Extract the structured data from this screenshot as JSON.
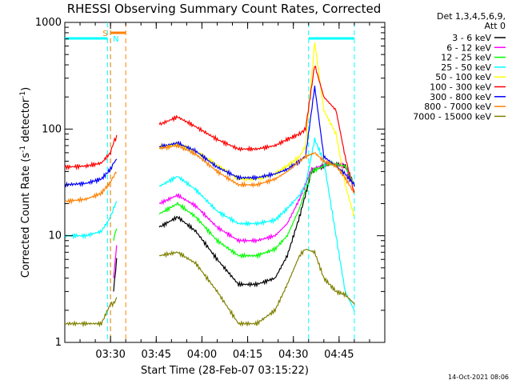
{
  "chart_data": {
    "type": "line",
    "title": "RHESSI Observing Summary Count Rates, Corrected",
    "xlabel": "Start Time (28-Feb-07 03:15:22)",
    "ylabel_main": "Corrected Count Rate (s",
    "ylabel_sup1": "-1",
    "ylabel_mid": " detector",
    "ylabel_sup2": "-1",
    "ylabel_end": ")",
    "ylabel": "Corrected Count Rate (s-1 detector-1)",
    "yscale": "log",
    "ylim": [
      1,
      1000
    ],
    "xlim": [
      "03:15",
      "05:00"
    ],
    "xticks": [
      "03:30",
      "03:45",
      "04:00",
      "04:15",
      "04:30",
      "04:45"
    ],
    "yticks": [
      "1",
      "10",
      "100",
      "1000"
    ],
    "legend_header": [
      "Det 1,3,4,5,6,9,",
      "Att 0"
    ],
    "legend_placement": "right",
    "flag_labels": {
      "saa": "S",
      "night": "N"
    },
    "timestamp": "14-Oct-2021 08:06",
    "series": [
      {
        "name": "3 - 6 keV",
        "color": "#000000",
        "x": [
          "03:15",
          "03:30",
          "03:31",
          "03:32",
          "03:43",
          "03:46",
          "03:52",
          "03:58",
          "04:05",
          "04:12",
          "04:18",
          "04:24",
          "04:28",
          "04:32",
          "04:36",
          "04:42",
          "04:47",
          "04:50"
        ],
        "y": [
          null,
          null,
          3.0,
          6.0,
          null,
          12,
          15,
          11,
          6,
          3.5,
          3.5,
          4.0,
          6.5,
          15,
          40,
          48,
          45,
          30
        ]
      },
      {
        "name": "6 - 12 keV",
        "color": "#ff00ff",
        "x": [
          "03:15",
          "03:30",
          "03:31",
          "03:32",
          "03:43",
          "03:46",
          "03:52",
          "03:58",
          "04:05",
          "04:12",
          "04:18",
          "04:24",
          "04:28",
          "04:32",
          "04:36",
          "04:42",
          "04:47",
          "04:50"
        ],
        "y": [
          null,
          null,
          4.0,
          8.0,
          null,
          20,
          24,
          19,
          12,
          9,
          9,
          10,
          13,
          22,
          42,
          48,
          45,
          30
        ]
      },
      {
        "name": "12 - 25 keV",
        "color": "#00ff00",
        "x": [
          "03:15",
          "03:30",
          "03:31",
          "03:32",
          "03:43",
          "03:46",
          "03:52",
          "03:58",
          "04:05",
          "04:12",
          "04:18",
          "04:24",
          "04:28",
          "04:32",
          "04:36",
          "04:42",
          "04:47",
          "04:50"
        ],
        "y": [
          null,
          null,
          9,
          12,
          null,
          16,
          20,
          15,
          9,
          6.5,
          6.5,
          7.5,
          10,
          18,
          40,
          48,
          45,
          30
        ]
      },
      {
        "name": "25 - 50 keV",
        "color": "#00ffff",
        "x": [
          "03:15",
          "03:22",
          "03:27",
          "03:30",
          "03:31",
          "03:32",
          "03:43",
          "03:46",
          "03:52",
          "03:58",
          "04:05",
          "04:12",
          "04:18",
          "04:24",
          "04:28",
          "04:32",
          "04:34",
          "04:37",
          "04:40",
          "04:44",
          "04:47",
          "04:50"
        ],
        "y": [
          10,
          10,
          11,
          15,
          18,
          21,
          null,
          29,
          36,
          27,
          17,
          13,
          13,
          14,
          18,
          24,
          30,
          80,
          50,
          10,
          3,
          2
        ]
      },
      {
        "name": "50 - 100 keV",
        "color": "#ffff00",
        "x": [
          "03:43",
          "03:46",
          "03:52",
          "03:58",
          "04:05",
          "04:12",
          "04:18",
          "04:24",
          "04:28",
          "04:32",
          "04:34",
          "04:37",
          "04:40",
          "04:44",
          "04:47",
          "04:50"
        ],
        "y": [
          null,
          68,
          72,
          62,
          46,
          34,
          34,
          38,
          45,
          55,
          70,
          650,
          150,
          90,
          30,
          15
        ]
      },
      {
        "name": "100 - 300 keV",
        "color": "#ff0000",
        "x": [
          "03:15",
          "03:22",
          "03:27",
          "03:30",
          "03:31",
          "03:32",
          "03:43",
          "03:46",
          "03:52",
          "03:58",
          "04:05",
          "04:12",
          "04:18",
          "04:24",
          "04:28",
          "04:32",
          "04:34",
          "04:37",
          "04:40",
          "04:44",
          "04:47",
          "04:50"
        ],
        "y": [
          44,
          45,
          48,
          60,
          75,
          85,
          null,
          110,
          130,
          105,
          80,
          65,
          65,
          70,
          80,
          90,
          100,
          400,
          200,
          150,
          55,
          25
        ]
      },
      {
        "name": "300 - 800 keV",
        "color": "#0000ff",
        "x": [
          "03:15",
          "03:22",
          "03:27",
          "03:30",
          "03:31",
          "03:32",
          "03:43",
          "03:46",
          "03:52",
          "03:58",
          "04:05",
          "04:12",
          "04:18",
          "04:24",
          "04:28",
          "04:32",
          "04:34",
          "04:37",
          "04:40",
          "04:44",
          "04:47",
          "04:50"
        ],
        "y": [
          30,
          31,
          34,
          42,
          48,
          52,
          null,
          68,
          74,
          62,
          44,
          35,
          35,
          38,
          42,
          50,
          56,
          250,
          55,
          45,
          38,
          30
        ]
      },
      {
        "name": "800 - 7000 keV",
        "color": "#ff8000",
        "x": [
          "03:15",
          "03:22",
          "03:27",
          "03:30",
          "03:31",
          "03:32",
          "03:43",
          "03:46",
          "03:52",
          "03:58",
          "04:05",
          "04:12",
          "04:18",
          "04:24",
          "04:28",
          "04:32",
          "04:34",
          "04:37",
          "04:40",
          "04:44",
          "04:47",
          "04:50"
        ],
        "y": [
          21,
          22,
          25,
          32,
          36,
          40,
          null,
          66,
          70,
          58,
          40,
          30,
          30,
          34,
          40,
          50,
          55,
          60,
          50,
          45,
          35,
          25
        ]
      },
      {
        "name": "7000 - 15000 keV",
        "color": "#808000",
        "x": [
          "03:15",
          "03:22",
          "03:27",
          "03:30",
          "03:31",
          "03:32",
          "03:43",
          "03:46",
          "03:52",
          "03:58",
          "04:05",
          "04:12",
          "04:18",
          "04:24",
          "04:28",
          "04:32",
          "04:34",
          "04:37",
          "04:40",
          "04:44",
          "04:47",
          "04:50"
        ],
        "y": [
          1.5,
          1.5,
          1.5,
          2.3,
          2.3,
          2.6,
          null,
          6.5,
          7.0,
          5.5,
          3.0,
          1.5,
          1.5,
          2.0,
          3.5,
          6.5,
          7.5,
          7.0,
          4.0,
          3.0,
          2.8,
          2.3
        ]
      }
    ],
    "flags": {
      "saa_color": "#00ffff",
      "night_color": "#ff8000",
      "saa_bars": [
        [
          "03:15",
          "03:29"
        ],
        [
          "04:35",
          "04:50"
        ]
      ],
      "night_bars": [
        [
          "03:30",
          "03:35"
        ]
      ],
      "saa_markers": [
        "03:29",
        "03:30",
        "04:35",
        "04:50"
      ],
      "night_markers": [
        "03:30",
        "03:35"
      ]
    }
  }
}
